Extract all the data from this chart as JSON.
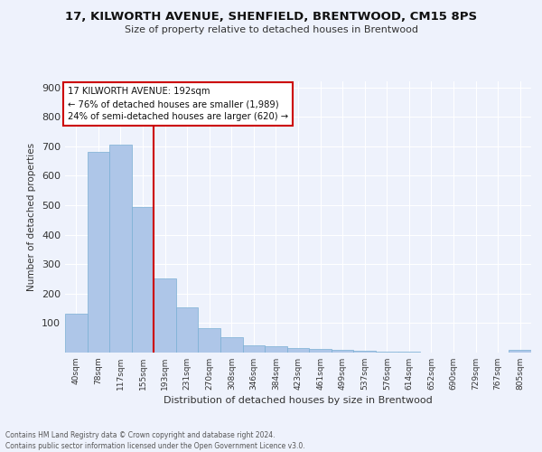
{
  "title1": "17, KILWORTH AVENUE, SHENFIELD, BRENTWOOD, CM15 8PS",
  "title2": "Size of property relative to detached houses in Brentwood",
  "xlabel": "Distribution of detached houses by size in Brentwood",
  "ylabel": "Number of detached properties",
  "footnote1": "Contains HM Land Registry data © Crown copyright and database right 2024.",
  "footnote2": "Contains public sector information licensed under the Open Government Licence v3.0.",
  "bin_labels": [
    "40sqm",
    "78sqm",
    "117sqm",
    "155sqm",
    "193sqm",
    "231sqm",
    "270sqm",
    "308sqm",
    "346sqm",
    "384sqm",
    "423sqm",
    "461sqm",
    "499sqm",
    "537sqm",
    "576sqm",
    "614sqm",
    "652sqm",
    "690sqm",
    "729sqm",
    "767sqm",
    "805sqm"
  ],
  "bar_values": [
    133,
    681,
    706,
    493,
    251,
    153,
    84,
    51,
    26,
    20,
    15,
    12,
    10,
    5,
    4,
    2,
    1,
    1,
    0,
    0,
    8
  ],
  "bar_color": "#aec6e8",
  "bar_edge_color": "#7aafd4",
  "background_color": "#eef2fc",
  "grid_color": "#ffffff",
  "property_line_color": "#cc0000",
  "annotation_title": "17 KILWORTH AVENUE: 192sqm",
  "annotation_line1": "← 76% of detached houses are smaller (1,989)",
  "annotation_line2": "24% of semi-detached houses are larger (620) →",
  "annotation_box_color": "#ffffff",
  "annotation_box_edge": "#cc0000",
  "ylim": [
    0,
    920
  ],
  "yticks": [
    0,
    100,
    200,
    300,
    400,
    500,
    600,
    700,
    800,
    900
  ]
}
